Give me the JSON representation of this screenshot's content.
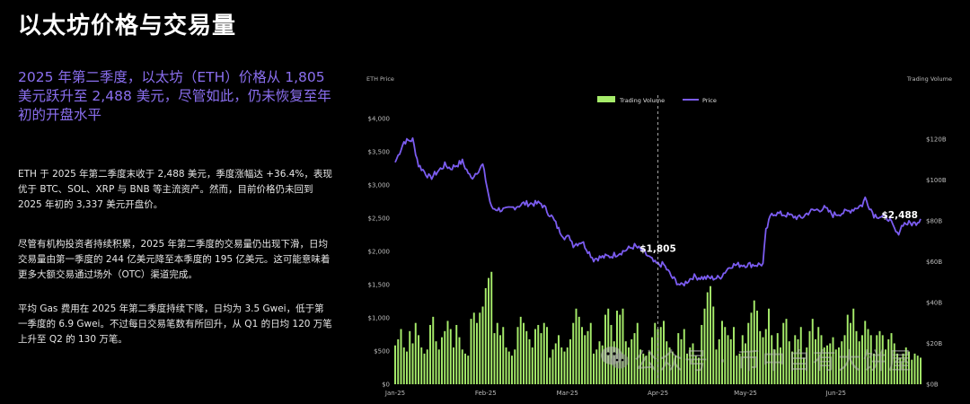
{
  "page": {
    "title": "以太坊价格与交易量",
    "highlight": "2025 年第二季度，以太坊（ETH）价格从 1,805 美元跃升至 2,488 美元，尽管如此，仍未恢复至年初的开盘水平",
    "paragraphs": [
      "ETH 于 2025 年第二季度末收于 2,488 美元，季度涨幅达 +36.4%，表现优于 BTC、SOL、XRP 与 BNB 等主流资产。然而，目前价格仍未回到 2025 年初的 3,337 美元开盘价。",
      "尽管有机构投资者持续积累，2025 年第二季度的交易量仍出现下滑，日均交易量由第一季度的 244 亿美元降至本季度的 195 亿美元。这可能意味着更多大额交易通过场外（OTC）渠道完成。",
      "平均 Gas 费用在 2025 年第二季度持续下降，日均为 3.5 Gwei，低于第一季度的 6.9 Gwei。不过每日交易笔数有所回升，从 Q1 的日均 120 万笔上升至 Q2 的 130 万笔。"
    ],
    "watermark": "公众号 · 币中自有大饼屋"
  },
  "colors": {
    "price": "#7b5cf0",
    "volume": "#a6ec6a",
    "highlight": "#8b6ff0",
    "axis": "#bdbdbd"
  },
  "chart_data": {
    "type": "bar+line",
    "ylabel_left": "ETH Price",
    "ylabel_right": "Trading Volume",
    "legend": [
      "Trading Volume",
      "Price"
    ],
    "legend_position": "top-center",
    "ylim_left": [
      0,
      4000
    ],
    "ylim_right": [
      0,
      130
    ],
    "left_ticks": [
      "$0",
      "$500",
      "$1,000",
      "$1,500",
      "$2,000",
      "$2,500",
      "$3,000",
      "$3,500",
      "$4,000"
    ],
    "right_ticks": [
      "$0B",
      "$20B",
      "$40B",
      "$60B",
      "$80B",
      "$100B",
      "$120B"
    ],
    "x_ticks": [
      "Jan-25",
      "Feb-25",
      "Mar-25",
      "Apr-25",
      "May-25",
      "Jun-25"
    ],
    "x_start": "2025-01-01",
    "x_end": "2025-06-30",
    "annotations": [
      {
        "label": "$1,805",
        "date": "2025-04-01",
        "value": 1805,
        "dashed_line": true
      },
      {
        "label": "$2,488",
        "date": "2025-06-30",
        "value": 2488
      }
    ],
    "price_anchors": [
      [
        "2025-01-01",
        3340
      ],
      [
        "2025-01-04",
        3650
      ],
      [
        "2025-01-07",
        3680
      ],
      [
        "2025-01-09",
        3300
      ],
      [
        "2025-01-13",
        3100
      ],
      [
        "2025-01-18",
        3300
      ],
      [
        "2025-01-20",
        3250
      ],
      [
        "2025-01-24",
        3350
      ],
      [
        "2025-01-27",
        3100
      ],
      [
        "2025-01-31",
        3300
      ],
      [
        "2025-02-02",
        2850
      ],
      [
        "2025-02-03",
        2650
      ],
      [
        "2025-02-08",
        2620
      ],
      [
        "2025-02-14",
        2720
      ],
      [
        "2025-02-20",
        2720
      ],
      [
        "2025-02-24",
        2500
      ],
      [
        "2025-02-26",
        2330
      ],
      [
        "2025-02-28",
        2220
      ],
      [
        "2025-03-02",
        2200
      ],
      [
        "2025-03-03",
        2100
      ],
      [
        "2025-03-06",
        2150
      ],
      [
        "2025-03-10",
        1880
      ],
      [
        "2025-03-11",
        1900
      ],
      [
        "2025-03-16",
        1930
      ],
      [
        "2025-03-20",
        2000
      ],
      [
        "2025-03-24",
        2080
      ],
      [
        "2025-03-27",
        2000
      ],
      [
        "2025-03-31",
        1820
      ],
      [
        "2025-04-01",
        1805
      ],
      [
        "2025-04-03",
        1800
      ],
      [
        "2025-04-06",
        1600
      ],
      [
        "2025-04-09",
        1480
      ],
      [
        "2025-04-13",
        1620
      ],
      [
        "2025-04-17",
        1600
      ],
      [
        "2025-04-22",
        1600
      ],
      [
        "2025-04-26",
        1790
      ],
      [
        "2025-04-30",
        1800
      ],
      [
        "2025-05-05",
        1800
      ],
      [
        "2025-05-07",
        1810
      ],
      [
        "2025-05-08",
        2300
      ],
      [
        "2025-05-10",
        2580
      ],
      [
        "2025-05-15",
        2550
      ],
      [
        "2025-05-20",
        2500
      ],
      [
        "2025-05-23",
        2600
      ],
      [
        "2025-05-28",
        2650
      ],
      [
        "2025-05-31",
        2550
      ],
      [
        "2025-06-05",
        2600
      ],
      [
        "2025-06-10",
        2700
      ],
      [
        "2025-06-11",
        2800
      ],
      [
        "2025-06-14",
        2550
      ],
      [
        "2025-06-19",
        2500
      ],
      [
        "2025-06-22",
        2250
      ],
      [
        "2025-06-24",
        2420
      ],
      [
        "2025-06-28",
        2420
      ],
      [
        "2025-06-30",
        2488
      ]
    ],
    "volume_daily_billions": [
      19,
      22,
      27,
      18,
      16,
      26,
      20,
      30,
      24,
      18,
      15,
      17,
      29,
      33,
      21,
      17,
      23,
      26,
      31,
      27,
      18,
      29,
      23,
      17,
      15,
      14,
      32,
      35,
      30,
      35,
      38,
      47,
      52,
      55,
      25,
      30,
      24,
      28,
      18,
      16,
      14,
      17,
      28,
      33,
      30,
      26,
      22,
      18,
      27,
      29,
      25,
      30,
      28,
      13,
      17,
      20,
      24,
      18,
      16,
      18,
      22,
      30,
      37,
      33,
      28,
      24,
      26,
      30,
      15,
      17,
      21,
      19,
      34,
      37,
      29,
      21,
      36,
      34,
      37,
      21,
      18,
      22,
      25,
      30,
      17,
      15,
      14,
      16,
      23,
      30,
      27,
      28,
      31,
      21,
      18,
      16,
      14,
      25,
      22,
      27,
      15,
      18,
      20,
      14,
      13,
      29,
      37,
      45,
      48,
      38,
      17,
      22,
      31,
      28,
      24,
      22,
      28,
      14,
      15,
      24,
      20,
      30,
      35,
      41,
      36,
      26,
      23,
      27,
      37,
      24,
      17,
      25,
      18,
      30,
      32,
      21,
      16,
      24,
      22,
      28,
      13,
      18,
      26,
      32,
      22,
      28,
      24,
      18,
      19,
      20,
      23,
      17,
      18,
      21,
      24,
      34,
      30,
      37,
      26,
      21,
      24,
      31,
      27,
      24,
      15,
      24,
      26,
      24,
      17,
      22,
      25,
      20,
      15,
      13,
      15,
      18,
      16,
      12,
      15,
      14,
      13
    ]
  }
}
